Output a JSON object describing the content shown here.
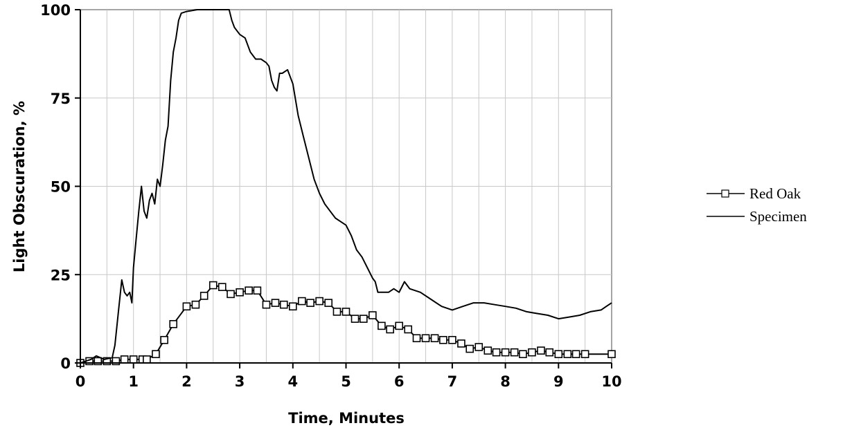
{
  "chart_data": {
    "type": "line",
    "title": "",
    "xlabel": "Time,  Minutes",
    "ylabel": "Light Obscuration, %",
    "xlim": [
      0,
      10
    ],
    "ylim": [
      0,
      100
    ],
    "x_ticks": [
      0,
      1,
      2,
      3,
      4,
      5,
      6,
      7,
      8,
      9,
      10
    ],
    "y_ticks": [
      0,
      25,
      50,
      75,
      100
    ],
    "x_grid": [
      0,
      0.5,
      1,
      1.5,
      2,
      2.5,
      3,
      3.5,
      4,
      4.5,
      5,
      5.5,
      6,
      6.5,
      7,
      7.5,
      8,
      8.5,
      9,
      9.5,
      10
    ],
    "y_grid": [
      0,
      25,
      50,
      75,
      100
    ],
    "grid": true,
    "legend_position": "right",
    "series": [
      {
        "name": "Red Oak",
        "marker": "square",
        "color": "#000000",
        "points": [
          [
            0,
            0
          ],
          [
            0.17,
            0.5
          ],
          [
            0.33,
            0.5
          ],
          [
            0.5,
            0.5
          ],
          [
            0.67,
            0.5
          ],
          [
            0.83,
            1
          ],
          [
            1,
            1
          ],
          [
            1.17,
            1
          ],
          [
            1.25,
            1
          ],
          [
            1.42,
            2.5
          ],
          [
            1.58,
            6.5
          ],
          [
            1.75,
            11
          ],
          [
            2,
            16
          ],
          [
            2.17,
            16.5
          ],
          [
            2.33,
            19
          ],
          [
            2.5,
            22
          ],
          [
            2.67,
            21.5
          ],
          [
            2.83,
            19.5
          ],
          [
            3,
            20
          ],
          [
            3.17,
            20.5
          ],
          [
            3.33,
            20.5
          ],
          [
            3.5,
            16.5
          ],
          [
            3.67,
            17
          ],
          [
            3.83,
            16.5
          ],
          [
            4,
            16
          ],
          [
            4.17,
            17.5
          ],
          [
            4.33,
            17
          ],
          [
            4.5,
            17.5
          ],
          [
            4.67,
            17
          ],
          [
            4.83,
            14.5
          ],
          [
            5,
            14.5
          ],
          [
            5.17,
            12.5
          ],
          [
            5.33,
            12.5
          ],
          [
            5.5,
            13.5
          ],
          [
            5.67,
            10.5
          ],
          [
            5.83,
            9.5
          ],
          [
            6,
            10.5
          ],
          [
            6.17,
            9.5
          ],
          [
            6.33,
            7
          ],
          [
            6.5,
            7
          ],
          [
            6.67,
            7
          ],
          [
            6.83,
            6.5
          ],
          [
            7,
            6.5
          ],
          [
            7.17,
            5.5
          ],
          [
            7.33,
            4
          ],
          [
            7.5,
            4.5
          ],
          [
            7.67,
            3.5
          ],
          [
            7.83,
            3
          ],
          [
            8,
            3
          ],
          [
            8.17,
            3
          ],
          [
            8.33,
            2.5
          ],
          [
            8.5,
            3
          ],
          [
            8.67,
            3.5
          ],
          [
            8.83,
            3
          ],
          [
            9,
            2.5
          ],
          [
            9.17,
            2.5
          ],
          [
            9.33,
            2.5
          ],
          [
            9.5,
            2.5
          ],
          [
            10,
            2.5
          ]
        ]
      },
      {
        "name": "Specimen",
        "marker": "none",
        "color": "#000000",
        "points": [
          [
            0,
            0
          ],
          [
            0.2,
            1
          ],
          [
            0.3,
            2
          ],
          [
            0.45,
            1
          ],
          [
            0.6,
            1.5
          ],
          [
            0.65,
            5
          ],
          [
            0.72,
            15
          ],
          [
            0.78,
            23.5
          ],
          [
            0.83,
            20
          ],
          [
            0.88,
            19
          ],
          [
            0.93,
            20
          ],
          [
            0.97,
            17
          ],
          [
            1.0,
            27
          ],
          [
            1.05,
            35
          ],
          [
            1.1,
            43
          ],
          [
            1.15,
            50
          ],
          [
            1.2,
            43
          ],
          [
            1.25,
            41
          ],
          [
            1.3,
            46
          ],
          [
            1.35,
            48
          ],
          [
            1.4,
            45
          ],
          [
            1.45,
            52
          ],
          [
            1.5,
            50
          ],
          [
            1.55,
            56
          ],
          [
            1.6,
            63
          ],
          [
            1.65,
            67
          ],
          [
            1.7,
            80
          ],
          [
            1.75,
            88
          ],
          [
            1.8,
            92
          ],
          [
            1.85,
            97
          ],
          [
            1.9,
            99
          ],
          [
            2.0,
            99.5
          ],
          [
            2.2,
            100
          ],
          [
            2.8,
            100
          ],
          [
            2.85,
            97
          ],
          [
            2.9,
            95
          ],
          [
            3.0,
            93
          ],
          [
            3.1,
            92
          ],
          [
            3.2,
            88
          ],
          [
            3.3,
            86
          ],
          [
            3.4,
            86
          ],
          [
            3.5,
            85
          ],
          [
            3.55,
            84
          ],
          [
            3.6,
            80
          ],
          [
            3.65,
            78
          ],
          [
            3.7,
            77
          ],
          [
            3.75,
            82
          ],
          [
            3.8,
            82
          ],
          [
            3.9,
            83
          ],
          [
            4.0,
            79
          ],
          [
            4.1,
            70
          ],
          [
            4.2,
            64
          ],
          [
            4.3,
            58
          ],
          [
            4.4,
            52
          ],
          [
            4.5,
            48
          ],
          [
            4.6,
            45
          ],
          [
            4.7,
            43
          ],
          [
            4.8,
            41
          ],
          [
            4.9,
            40
          ],
          [
            5.0,
            39
          ],
          [
            5.1,
            36
          ],
          [
            5.2,
            32
          ],
          [
            5.3,
            30
          ],
          [
            5.4,
            27
          ],
          [
            5.5,
            24
          ],
          [
            5.55,
            23
          ],
          [
            5.6,
            20
          ],
          [
            5.8,
            20
          ],
          [
            5.9,
            21
          ],
          [
            6.0,
            20
          ],
          [
            6.1,
            23
          ],
          [
            6.15,
            22
          ],
          [
            6.2,
            21
          ],
          [
            6.4,
            20
          ],
          [
            6.6,
            18
          ],
          [
            6.8,
            16
          ],
          [
            7.0,
            15
          ],
          [
            7.2,
            16
          ],
          [
            7.4,
            17
          ],
          [
            7.6,
            17
          ],
          [
            7.8,
            16.5
          ],
          [
            8.0,
            16
          ],
          [
            8.2,
            15.5
          ],
          [
            8.4,
            14.5
          ],
          [
            8.6,
            14
          ],
          [
            8.8,
            13.5
          ],
          [
            9.0,
            12.5
          ],
          [
            9.2,
            13
          ],
          [
            9.4,
            13.5
          ],
          [
            9.6,
            14.5
          ],
          [
            9.8,
            15
          ],
          [
            9.9,
            16
          ],
          [
            10.0,
            17
          ]
        ]
      }
    ]
  }
}
